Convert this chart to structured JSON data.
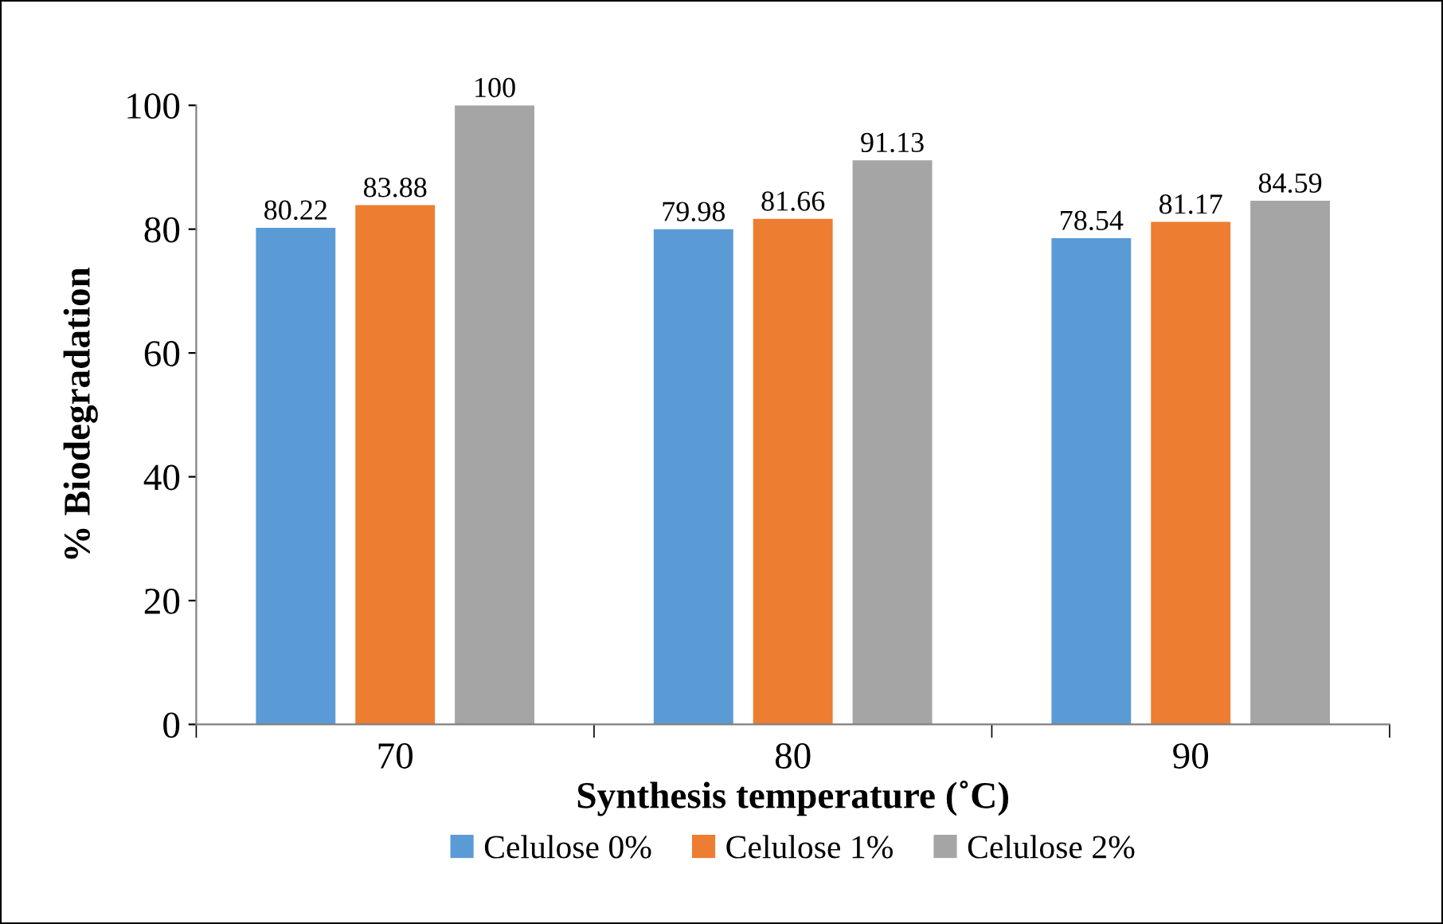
{
  "chart_data": {
    "type": "bar",
    "xlabel": "Synthesis temperature (˚C)",
    "ylabel": "% Biodegradation",
    "categories": [
      "70",
      "80",
      "90"
    ],
    "series": [
      {
        "name": "Celulose 0%",
        "color": "#5b9bd5",
        "values": [
          80.22,
          79.98,
          78.54
        ]
      },
      {
        "name": "Celulose 1%",
        "color": "#ed7d31",
        "values": [
          83.88,
          81.66,
          81.17
        ]
      },
      {
        "name": "Celulose 2%",
        "color": "#a5a5a5",
        "values": [
          100,
          91.13,
          84.59
        ]
      }
    ],
    "ylim": [
      0,
      100
    ],
    "yticks": [
      0,
      20,
      40,
      60,
      80,
      100
    ],
    "data_labels": true,
    "legend": "bottom",
    "grid": false
  }
}
